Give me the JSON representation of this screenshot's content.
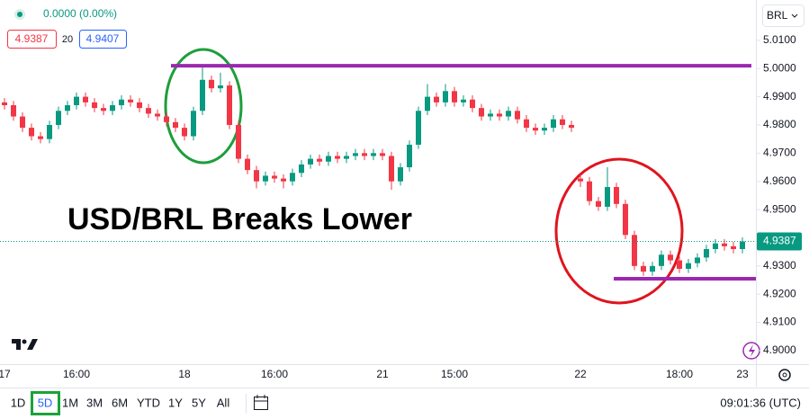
{
  "symbol": "BRL",
  "quote": {
    "change": "0.0000 (0.00%)",
    "spread": 20,
    "ask": 4.9407
  },
  "toolbar": {
    "intervals": [
      "1D",
      "5D",
      "1M",
      "3M",
      "6M",
      "YTD",
      "1Y",
      "5Y",
      "All"
    ],
    "clock": "09:01:36 (UTC)"
  },
  "chart_data": {
    "type": "candlestick",
    "annotation": "USD/BRL Breaks Lower",
    "up_color": "#089981",
    "down_color": "#f23645",
    "categories": [
      "17",
      null,
      null,
      null,
      null,
      null,
      null,
      null,
      "16:00",
      null,
      null,
      null,
      null,
      null,
      null,
      null,
      null,
      null,
      null,
      null,
      "18",
      null,
      null,
      null,
      null,
      null,
      null,
      null,
      null,
      null,
      "16:00",
      null,
      null,
      null,
      null,
      null,
      null,
      null,
      null,
      null,
      null,
      null,
      "21",
      null,
      null,
      null,
      null,
      null,
      null,
      null,
      "15:00",
      null,
      null,
      null,
      null,
      null,
      null,
      null,
      null,
      null,
      null,
      null,
      null,
      null,
      "22",
      null,
      null,
      null,
      null,
      null,
      null,
      null,
      null,
      null,
      null,
      "18:00",
      null,
      null,
      null,
      null,
      null,
      null,
      "23"
    ],
    "open": [
      4.988,
      4.987,
      4.983,
      4.979,
      4.976,
      4.975,
      4.98,
      4.985,
      4.987,
      4.99,
      4.988,
      4.986,
      4.985,
      4.987,
      4.989,
      4.988,
      4.986,
      4.984,
      4.983,
      4.981,
      4.979,
      4.976,
      4.985,
      4.996,
      4.993,
      4.994,
      4.98,
      4.968,
      4.964,
      4.96,
      4.962,
      4.961,
      4.96,
      4.963,
      4.966,
      4.968,
      4.967,
      4.969,
      4.968,
      4.969,
      4.97,
      4.969,
      4.97,
      4.969,
      4.96,
      4.965,
      4.973,
      4.985,
      4.99,
      4.988,
      4.992,
      4.988,
      4.989,
      4.986,
      4.983,
      4.984,
      4.983,
      4.985,
      4.982,
      4.979,
      4.978,
      4.979,
      4.982,
      4.98,
      4.961,
      4.96,
      4.953,
      4.951,
      4.958,
      4.952,
      4.941,
      4.93,
      4.928,
      4.93,
      4.934,
      4.932,
      4.929,
      4.931,
      4.933,
      4.936,
      4.938,
      4.937,
      4.936
    ],
    "high": [
      4.9895,
      4.9885,
      4.9845,
      4.9805,
      4.9775,
      4.9815,
      4.9865,
      4.9885,
      4.9915,
      4.9915,
      4.9895,
      4.9875,
      4.9885,
      4.9905,
      4.9905,
      4.9895,
      4.9875,
      4.9855,
      4.9845,
      4.9825,
      4.9805,
      4.9865,
      5.0005,
      4.9975,
      4.9985,
      4.9955,
      4.9815,
      4.9695,
      4.9655,
      4.9635,
      4.9635,
      4.9625,
      4.9645,
      4.9675,
      4.9695,
      4.9695,
      4.9705,
      4.9705,
      4.9705,
      4.9715,
      4.9715,
      4.9715,
      4.9715,
      4.9705,
      4.9665,
      4.9745,
      4.9865,
      4.9945,
      4.9915,
      4.9945,
      4.9935,
      4.9905,
      4.9905,
      4.9875,
      4.9855,
      4.9855,
      4.9865,
      4.9865,
      4.9835,
      4.9805,
      4.9805,
      4.9835,
      4.9835,
      4.9815,
      4.9625,
      4.9615,
      4.9545,
      4.965,
      4.9595,
      4.9535,
      4.9425,
      4.9315,
      4.9315,
      4.9355,
      4.9355,
      4.9335,
      4.9325,
      4.9345,
      4.9375,
      4.9395,
      4.9395,
      4.9385,
      4.9402
    ],
    "low": [
      4.9855,
      4.9815,
      4.9775,
      4.9745,
      4.9735,
      4.9735,
      4.9785,
      4.9835,
      4.9855,
      4.9865,
      4.9845,
      4.9835,
      4.9835,
      4.9855,
      4.9865,
      4.9845,
      4.9825,
      4.9815,
      4.9795,
      4.9775,
      4.9745,
      4.9745,
      4.9835,
      4.9915,
      4.9915,
      4.9785,
      4.9665,
      4.9625,
      4.9575,
      4.9585,
      4.9595,
      4.9575,
      4.9585,
      4.9615,
      4.9645,
      4.9655,
      4.9655,
      4.9665,
      4.9665,
      4.9675,
      4.9675,
      4.9675,
      4.9675,
      4.957,
      4.9585,
      4.9635,
      4.9715,
      4.9835,
      4.9865,
      4.9865,
      4.9865,
      4.9865,
      4.9845,
      4.9815,
      4.9815,
      4.9815,
      4.9815,
      4.9805,
      4.9775,
      4.9765,
      4.9765,
      4.9775,
      4.9785,
      4.9775,
      4.958,
      4.9515,
      4.9495,
      4.9495,
      4.9505,
      4.9395,
      4.9285,
      4.9265,
      4.9265,
      4.9285,
      4.9305,
      4.9275,
      4.9275,
      4.9295,
      4.9315,
      4.9345,
      4.9355,
      4.9345,
      4.9345
    ],
    "close": [
      4.987,
      4.983,
      4.979,
      4.976,
      4.975,
      4.98,
      4.985,
      4.987,
      4.99,
      4.988,
      4.986,
      4.985,
      4.987,
      4.989,
      4.988,
      4.986,
      4.984,
      4.983,
      4.981,
      4.979,
      4.976,
      4.985,
      4.996,
      4.993,
      4.994,
      4.98,
      4.968,
      4.964,
      4.96,
      4.962,
      4.961,
      4.96,
      4.963,
      4.966,
      4.968,
      4.967,
      4.969,
      4.968,
      4.969,
      4.97,
      4.969,
      4.97,
      4.969,
      4.96,
      4.965,
      4.973,
      4.985,
      4.99,
      4.988,
      4.992,
      4.988,
      4.989,
      4.986,
      4.983,
      4.984,
      4.983,
      4.985,
      4.982,
      4.979,
      4.978,
      4.979,
      4.982,
      4.98,
      4.979,
      4.96,
      4.953,
      4.951,
      4.958,
      4.952,
      4.941,
      4.93,
      4.928,
      4.93,
      4.934,
      4.932,
      4.929,
      4.931,
      4.933,
      4.936,
      4.938,
      4.937,
      4.936,
      4.9387
    ],
    "ylim": [
      4.8952,
      5.0243
    ],
    "yticks": [
      {
        "value": 5.01,
        "label": "5.0100"
      },
      {
        "value": 5.0,
        "label": "5.0000"
      },
      {
        "value": 4.99,
        "label": "4.9900"
      },
      {
        "value": 4.98,
        "label": "4.9800"
      },
      {
        "value": 4.97,
        "label": "4.9700"
      },
      {
        "value": 4.96,
        "label": "4.9600"
      },
      {
        "value": 4.95,
        "label": "4.9500"
      },
      {
        "value": 4.93,
        "label": "4.9300"
      },
      {
        "value": 4.92,
        "label": "4.9200"
      },
      {
        "value": 4.91,
        "label": "4.9100"
      },
      {
        "value": 4.9,
        "label": "4.9000"
      }
    ],
    "hlines": [
      {
        "value": 5.001,
        "color": "#9c27b0"
      },
      {
        "value": 4.9255,
        "color": "#9c27b0"
      }
    ],
    "grid": false
  }
}
